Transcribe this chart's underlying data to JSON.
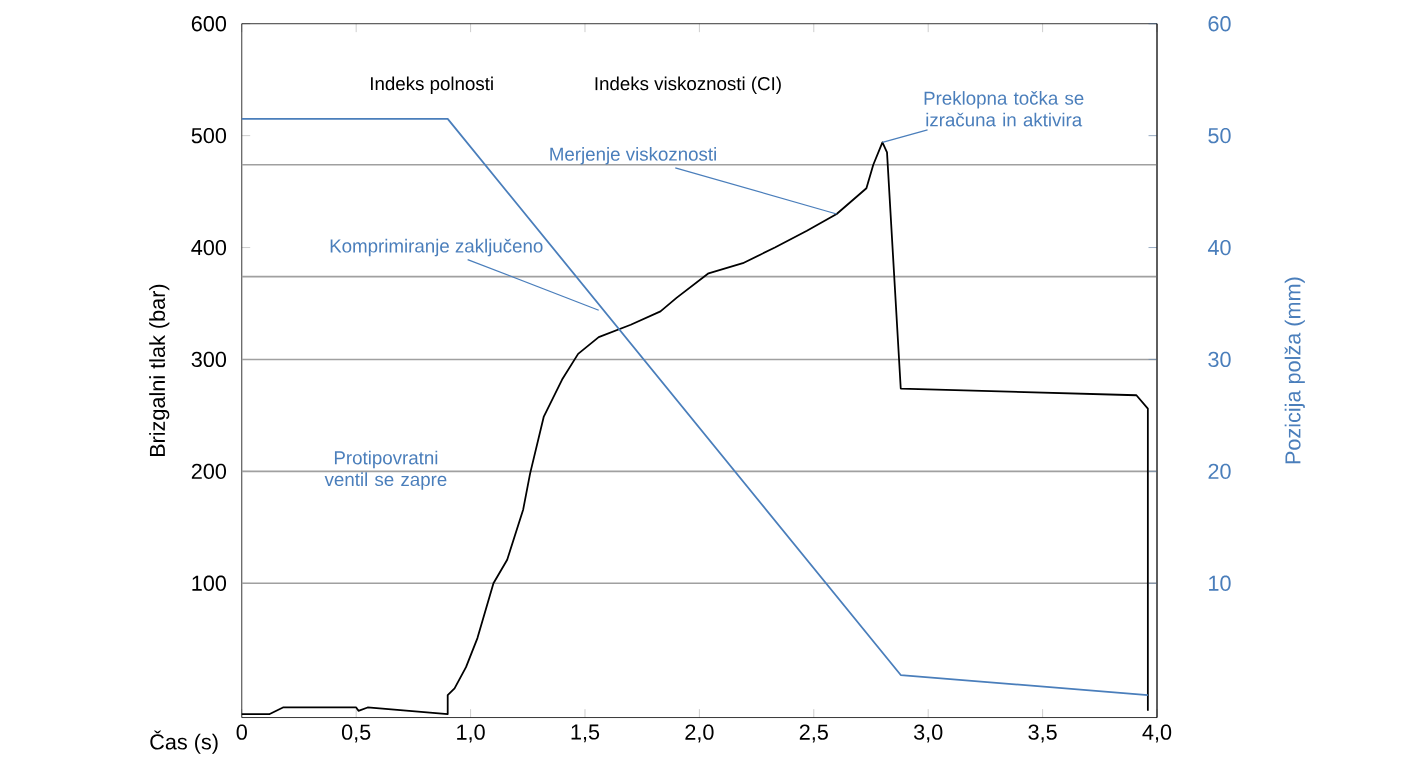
{
  "chart_data": {
    "type": "line",
    "xlabel": "Čas (s)",
    "ylabel": "Brizgalni tlak (bar)",
    "y2label": "Pozicija polža (mm)",
    "xlim": [
      0,
      4
    ],
    "xticks": [
      0,
      {
        "value": 0.5,
        "label": "0,5"
      },
      {
        "value": 1,
        "label": "1,0"
      },
      {
        "value": 1.5,
        "label": "1,5"
      },
      {
        "value": 2,
        "label": "2,0"
      },
      {
        "value": 2.5,
        "label": "2,5"
      },
      {
        "value": 3,
        "label": "3,0"
      },
      {
        "value": 3.5,
        "label": "3,5"
      },
      {
        "value": 4,
        "label": "4,0"
      }
    ],
    "ylim": [
      -20,
      600
    ],
    "yticks": [
      100,
      200,
      300,
      400,
      500,
      600
    ],
    "y2lim": [
      -2,
      60
    ],
    "y2ticks": [
      10,
      20,
      30,
      40,
      50,
      60
    ],
    "marker": "none",
    "line_style": "solid",
    "series": [
      {
        "color": "#000000",
        "x": [
          0,
          0.12,
          0.18,
          0.5,
          0.51,
          0.55,
          0.9,
          0.9,
          0.93,
          0.98,
          1.03,
          1.1,
          1.16,
          1.23,
          1.26,
          1.32,
          1.4,
          1.47,
          1.56,
          1.7,
          1.83,
          1.9,
          2.04,
          2.19,
          2.33,
          2.47,
          2.6,
          2.73,
          2.76,
          2.8,
          2.82,
          2.88,
          3.91,
          3.96,
          3.96
        ],
        "values": [
          -17,
          -17,
          -11,
          -11,
          -14,
          -11,
          -17,
          0,
          6,
          25,
          51,
          100,
          121,
          166,
          198,
          249,
          282,
          305,
          320,
          331,
          343,
          355,
          377,
          386,
          400,
          415,
          430,
          453,
          474,
          494,
          485,
          274,
          268,
          256,
          -14
        ]
      },
      {
        "color": "#4a7ebb",
        "axis": "y2",
        "x": [
          0,
          0.9,
          2.88,
          3.96
        ],
        "values": [
          51.5,
          51.5,
          1.8,
          0
        ]
      }
    ],
    "ref_lines": [
      {
        "axis": "y",
        "value": 100,
        "color": "#a0a0a0"
      },
      {
        "axis": "y",
        "value": 200,
        "color": "#a0a0a0"
      },
      {
        "axis": "y",
        "value": 300,
        "color": "#a0a0a0"
      },
      {
        "axis": "y",
        "value": 374,
        "color": "#a0a0a0"
      },
      {
        "axis": "y",
        "value": 474,
        "color": "#a0a0a0"
      }
    ],
    "annotations": [
      "Indeks polnosti",
      "Indeks viskoznosti (CI)",
      {
        "text": "Merjenje viskoznosti",
        "x": 2.6,
        "y": 430
      },
      {
        "text": "Komprimiranje zaključeno",
        "x": 1.56,
        "y": 344
      },
      "Protipovratni ventil se zapre",
      {
        "text": "Preklopna točka se izračuna in aktivira",
        "x": 2.8,
        "y": 494
      }
    ]
  }
}
